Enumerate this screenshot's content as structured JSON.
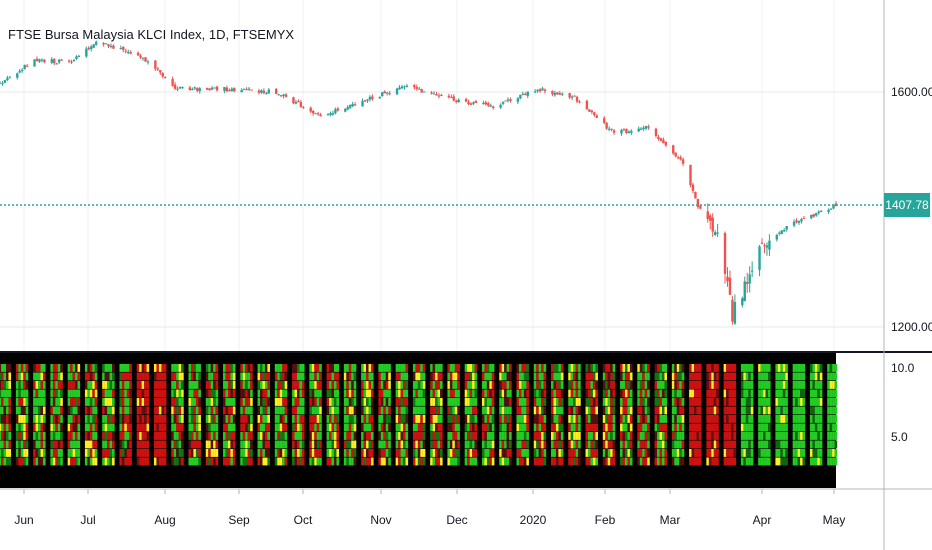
{
  "header": {
    "title": "FTSE Bursa Malaysia KLCI Index, 1D, FTSEMYX"
  },
  "price_scale": {
    "labels": [
      "1600.00",
      "1200.00"
    ],
    "last_price": "1407.78"
  },
  "indicator_scale": {
    "labels": [
      "10.0",
      "5.0"
    ]
  },
  "time_axis": {
    "labels": [
      "Jun",
      "Jul",
      "Aug",
      "Sep",
      "Oct",
      "Nov",
      "Dec",
      "2020",
      "Feb",
      "Mar",
      "Apr",
      "May"
    ]
  },
  "colors": {
    "up": "#26a69a",
    "down": "#ef5350",
    "price_line": "#26a69a",
    "heat_green": "#22cc22",
    "heat_red": "#cc1111",
    "heat_yellow": "#ffee22",
    "heat_bg": "#000000"
  },
  "chart_data": {
    "type": "candlestick",
    "title": "FTSE Bursa Malaysia KLCI Index, 1D, FTSEMYX",
    "x_range": [
      "2019-05-27",
      "2020-04-30"
    ],
    "ylim": [
      1180,
      1690
    ],
    "last_price": 1407.78,
    "approximate_close_path": [
      {
        "x": "2019-05-27",
        "close": 1615
      },
      {
        "x": "2019-06-10",
        "close": 1655
      },
      {
        "x": "2019-06-24",
        "close": 1650
      },
      {
        "x": "2019-07-05",
        "close": 1685
      },
      {
        "x": "2019-07-22",
        "close": 1665
      },
      {
        "x": "2019-08-07",
        "close": 1605
      },
      {
        "x": "2019-08-26",
        "close": 1605
      },
      {
        "x": "2019-09-16",
        "close": 1600
      },
      {
        "x": "2019-10-04",
        "close": 1560
      },
      {
        "x": "2019-10-25",
        "close": 1590
      },
      {
        "x": "2019-11-07",
        "close": 1610
      },
      {
        "x": "2019-11-29",
        "close": 1585
      },
      {
        "x": "2019-12-13",
        "close": 1575
      },
      {
        "x": "2019-12-31",
        "close": 1605
      },
      {
        "x": "2020-01-15",
        "close": 1590
      },
      {
        "x": "2020-01-31",
        "close": 1530
      },
      {
        "x": "2020-02-14",
        "close": 1540
      },
      {
        "x": "2020-02-28",
        "close": 1480
      },
      {
        "x": "2020-03-05",
        "close": 1405
      },
      {
        "x": "2020-03-13",
        "close": 1360
      },
      {
        "x": "2020-03-19",
        "close": 1220
      },
      {
        "x": "2020-03-31",
        "close": 1340
      },
      {
        "x": "2020-04-14",
        "close": 1380
      },
      {
        "x": "2020-04-21",
        "close": 1390
      },
      {
        "x": "2020-04-30",
        "close": 1407.78
      }
    ],
    "indicator": {
      "type": "heatmap",
      "ylim": [
        1,
        11
      ],
      "colors": [
        "green",
        "red",
        "yellow"
      ],
      "regimes": [
        {
          "from": "2019-05-27",
          "to": "2019-07-18",
          "dominant": "mixed"
        },
        {
          "from": "2019-07-19",
          "to": "2019-08-02",
          "dominant": "red"
        },
        {
          "from": "2019-08-05",
          "to": "2019-12-31",
          "dominant": "mixed"
        },
        {
          "from": "2020-01-02",
          "to": "2020-02-28",
          "dominant": "mixed"
        },
        {
          "from": "2020-03-02",
          "to": "2020-03-20",
          "dominant": "red"
        },
        {
          "from": "2020-03-23",
          "to": "2020-04-30",
          "dominant": "green"
        }
      ]
    }
  }
}
